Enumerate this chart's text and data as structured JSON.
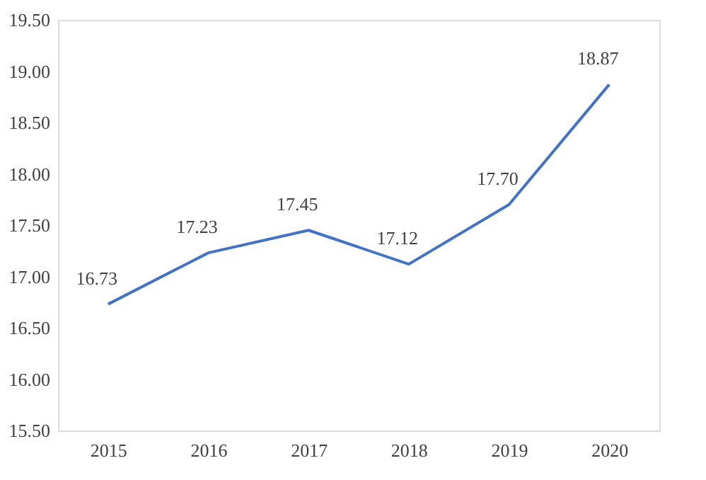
{
  "chart_data": {
    "type": "line",
    "categories": [
      "2015",
      "2016",
      "2017",
      "2018",
      "2019",
      "2020"
    ],
    "series": [
      {
        "color": "#4472c4",
        "values": [
          16.73,
          17.23,
          17.45,
          17.12,
          17.7,
          18.87
        ],
        "value_labels": [
          "16.73",
          "17.23",
          "17.45",
          "17.12",
          "17.70",
          "18.87"
        ]
      }
    ],
    "ylim": [
      15.5,
      19.5
    ],
    "yticks": [
      {
        "value": 15.5,
        "label": "15.50"
      },
      {
        "value": 16.0,
        "label": "16.00"
      },
      {
        "value": 16.5,
        "label": "16.50"
      },
      {
        "value": 17.0,
        "label": "17.00"
      },
      {
        "value": 17.5,
        "label": "17.50"
      },
      {
        "value": 18.0,
        "label": "18.00"
      },
      {
        "value": 18.5,
        "label": "18.50"
      },
      {
        "value": 19.0,
        "label": "19.00"
      },
      {
        "value": 19.5,
        "label": "19.50"
      }
    ],
    "grid": false,
    "marker": "none",
    "line_style": "solid"
  }
}
